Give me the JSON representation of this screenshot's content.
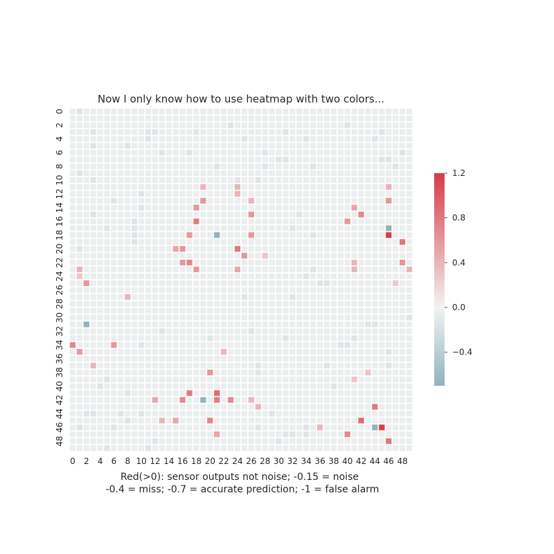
{
  "chart_data": {
    "type": "heatmap",
    "title": "Now I only know how to use heatmap with two colors...",
    "xlabel_lines": [
      "Red(>0): sensor outputs not noise; -0.15 = noise",
      "-0.4 = miss; -0.7 = accurate prediction; -1 = false alarm"
    ],
    "ylabel": "",
    "rows": 50,
    "cols": 50,
    "x_tick_labels": [
      "0",
      "2",
      "4",
      "6",
      "8",
      "10",
      "12",
      "14",
      "16",
      "18",
      "20",
      "22",
      "24",
      "26",
      "28",
      "30",
      "32",
      "34",
      "36",
      "38",
      "40",
      "42",
      "44",
      "46",
      "48"
    ],
    "y_tick_labels": [
      "0",
      "2",
      "4",
      "6",
      "8",
      "10",
      "12",
      "14",
      "16",
      "18",
      "20",
      "22",
      "24",
      "26",
      "28",
      "30",
      "32",
      "34",
      "36",
      "38",
      "40",
      "42",
      "44",
      "46",
      "48"
    ],
    "default_value": -0.05,
    "vmin": -0.7,
    "vmax": 1.2,
    "colormap": {
      "low": "#8fb3bd",
      "mid": "#f2f2f2",
      "high": "#d83c46"
    },
    "colorbar": {
      "ticks": [
        1.2,
        0.8,
        0.4,
        0.0,
        -0.4
      ],
      "tick_labels": [
        "1.2",
        "0.8",
        "0.4",
        "0.0",
        "−0.4"
      ],
      "position": "right"
    },
    "cells": [
      [
        0,
        1,
        -0.15
      ],
      [
        2,
        23,
        -0.15
      ],
      [
        2,
        40,
        -0.15
      ],
      [
        3,
        3,
        -0.15
      ],
      [
        3,
        11,
        -0.15
      ],
      [
        3,
        12,
        -0.15
      ],
      [
        3,
        18,
        -0.15
      ],
      [
        3,
        31,
        -0.15
      ],
      [
        3,
        45,
        -0.15
      ],
      [
        4,
        11,
        -0.15
      ],
      [
        4,
        25,
        -0.15
      ],
      [
        4,
        34,
        -0.15
      ],
      [
        4,
        44,
        -0.15
      ],
      [
        5,
        3,
        -0.15
      ],
      [
        5,
        8,
        -0.15
      ],
      [
        6,
        13,
        -0.15
      ],
      [
        6,
        17,
        -0.15
      ],
      [
        6,
        28,
        -0.15
      ],
      [
        6,
        48,
        -0.15
      ],
      [
        7,
        30,
        -0.15
      ],
      [
        7,
        31,
        -0.15
      ],
      [
        7,
        45,
        -0.15
      ],
      [
        7,
        46,
        -0.15
      ],
      [
        8,
        21,
        -0.15
      ],
      [
        8,
        28,
        -0.15
      ],
      [
        8,
        35,
        -0.15
      ],
      [
        8,
        47,
        -0.15
      ],
      [
        9,
        1,
        -0.15
      ],
      [
        10,
        3,
        -0.15
      ],
      [
        10,
        24,
        -0.15
      ],
      [
        10,
        27,
        -0.15
      ],
      [
        11,
        19,
        0.4
      ],
      [
        11,
        24,
        0.4
      ],
      [
        11,
        46,
        0.4
      ],
      [
        12,
        10,
        -0.15
      ],
      [
        12,
        24,
        0.4
      ],
      [
        13,
        6,
        -0.15
      ],
      [
        13,
        19,
        0.6
      ],
      [
        13,
        26,
        0.4
      ],
      [
        13,
        46,
        0.6
      ],
      [
        14,
        10,
        -0.15
      ],
      [
        14,
        18,
        0.6
      ],
      [
        14,
        41,
        0.5
      ],
      [
        15,
        3,
        -0.15
      ],
      [
        15,
        26,
        0.6
      ],
      [
        15,
        33,
        -0.15
      ],
      [
        15,
        42,
        0.7
      ],
      [
        16,
        9,
        -0.15
      ],
      [
        16,
        18,
        0.8
      ],
      [
        16,
        40,
        0.6
      ],
      [
        17,
        5,
        -0.15
      ],
      [
        17,
        9,
        -0.15
      ],
      [
        17,
        32,
        -0.15
      ],
      [
        17,
        46,
        -0.7
      ],
      [
        18,
        9,
        -0.15
      ],
      [
        18,
        17,
        0.6
      ],
      [
        18,
        21,
        -0.7
      ],
      [
        18,
        26,
        0.6
      ],
      [
        18,
        35,
        -0.15
      ],
      [
        18,
        46,
        1.2
      ],
      [
        19,
        9,
        -0.15
      ],
      [
        19,
        48,
        0.8
      ],
      [
        20,
        1,
        -0.15
      ],
      [
        20,
        15,
        0.5
      ],
      [
        20,
        16,
        0.6
      ],
      [
        20,
        24,
        0.8
      ],
      [
        21,
        25,
        0.6
      ],
      [
        21,
        28,
        0.3
      ],
      [
        22,
        16,
        0.6
      ],
      [
        22,
        17,
        0.7
      ],
      [
        22,
        41,
        0.4
      ],
      [
        22,
        48,
        0.6
      ],
      [
        23,
        1,
        0.4
      ],
      [
        23,
        18,
        0.6
      ],
      [
        23,
        24,
        0.5
      ],
      [
        23,
        35,
        -0.15
      ],
      [
        23,
        41,
        0.4
      ],
      [
        23,
        49,
        0.4
      ],
      [
        24,
        1,
        0.3
      ],
      [
        24,
        34,
        -0.15
      ],
      [
        25,
        2,
        0.6
      ],
      [
        25,
        36,
        -0.15
      ],
      [
        25,
        37,
        -0.15
      ],
      [
        25,
        47,
        0.3
      ],
      [
        27,
        8,
        0.4
      ],
      [
        27,
        25,
        -0.15
      ],
      [
        27,
        32,
        -0.15
      ],
      [
        30,
        49,
        -0.15
      ],
      [
        31,
        2,
        -0.7
      ],
      [
        31,
        43,
        -0.15
      ],
      [
        31,
        44,
        -0.15
      ],
      [
        32,
        13,
        -0.15
      ],
      [
        32,
        26,
        -0.15
      ],
      [
        33,
        20,
        -0.15
      ],
      [
        33,
        31,
        -0.15
      ],
      [
        33,
        41,
        -0.15
      ],
      [
        34,
        0,
        0.7
      ],
      [
        34,
        6,
        0.6
      ],
      [
        34,
        10,
        -0.15
      ],
      [
        34,
        39,
        -0.15
      ],
      [
        34,
        40,
        -0.15
      ],
      [
        35,
        1,
        0.6
      ],
      [
        35,
        22,
        0.4
      ],
      [
        35,
        46,
        -0.15
      ],
      [
        37,
        3,
        0.4
      ],
      [
        37,
        27,
        -0.15
      ],
      [
        37,
        37,
        -0.15
      ],
      [
        37,
        46,
        -0.15
      ],
      [
        38,
        20,
        0.6
      ],
      [
        38,
        27,
        -0.15
      ],
      [
        38,
        43,
        0.3
      ],
      [
        39,
        5,
        -0.15
      ],
      [
        39,
        41,
        0.3
      ],
      [
        40,
        4,
        -0.15
      ],
      [
        40,
        38,
        -0.15
      ],
      [
        41,
        8,
        -0.15
      ],
      [
        41,
        17,
        0.8
      ],
      [
        41,
        21,
        0.9
      ],
      [
        42,
        12,
        0.5
      ],
      [
        42,
        16,
        0.7
      ],
      [
        42,
        19,
        -0.7
      ],
      [
        42,
        21,
        0.8
      ],
      [
        42,
        23,
        0.7
      ],
      [
        42,
        26,
        0.4
      ],
      [
        43,
        27,
        0.4
      ],
      [
        43,
        44,
        0.8
      ],
      [
        44,
        2,
        -0.15
      ],
      [
        44,
        3,
        -0.15
      ],
      [
        44,
        7,
        -0.15
      ],
      [
        44,
        10,
        -0.15
      ],
      [
        44,
        29,
        -0.15
      ],
      [
        45,
        8,
        -0.15
      ],
      [
        45,
        13,
        0.4
      ],
      [
        45,
        15,
        0.5
      ],
      [
        45,
        20,
        0.7
      ],
      [
        45,
        42,
        0.9
      ],
      [
        46,
        1,
        -0.15
      ],
      [
        46,
        6,
        -0.15
      ],
      [
        46,
        27,
        -0.15
      ],
      [
        46,
        34,
        -0.15
      ],
      [
        46,
        36,
        0.4
      ],
      [
        46,
        44,
        -0.7
      ],
      [
        46,
        45,
        1.2
      ],
      [
        47,
        21,
        0.5
      ],
      [
        47,
        31,
        -0.15
      ],
      [
        47,
        32,
        -0.15
      ],
      [
        47,
        34,
        -0.15
      ],
      [
        47,
        40,
        0.7
      ],
      [
        48,
        12,
        -0.15
      ],
      [
        48,
        30,
        -0.15
      ],
      [
        48,
        46,
        0.8
      ],
      [
        49,
        5,
        -0.15
      ],
      [
        49,
        11,
        -0.15
      ]
    ]
  }
}
